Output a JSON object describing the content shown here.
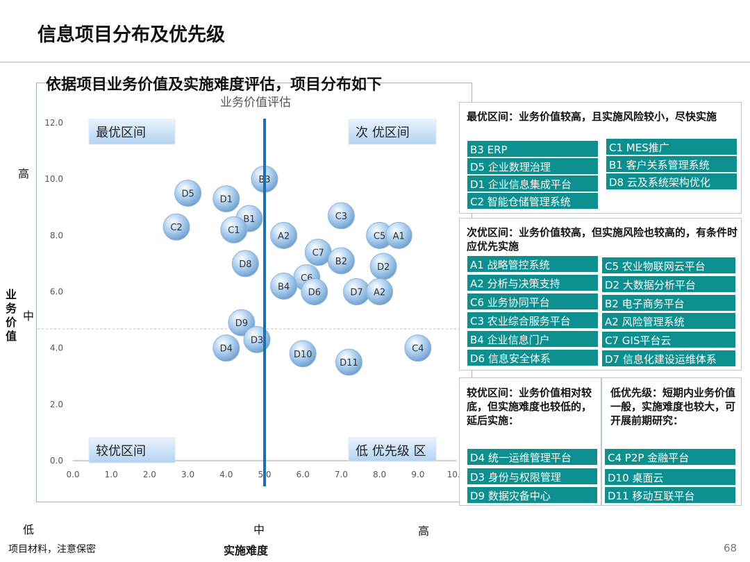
{
  "header": {
    "title": "信息项目分布及优先级",
    "subtitle": "依据项目业务价值及实施难度评估，项目分布如下"
  },
  "chart_data": {
    "type": "scatter",
    "title": "业务价值评估",
    "xlabel": "实施难度",
    "ylabel": "业务价值",
    "xlim": [
      0,
      10
    ],
    "ylim": [
      0,
      12
    ],
    "x_ticks": [
      "0.0",
      "1.0",
      "2.0",
      "3.0",
      "4.0",
      "5.0",
      "6.0",
      "7.0",
      "8.0",
      "9.0",
      "10.0"
    ],
    "y_ticks": [
      "0.0",
      "2.0",
      "4.0",
      "6.0",
      "8.0",
      "10.0",
      "12.0"
    ],
    "divider_x": 5.0,
    "axis_words": {
      "y_high": "高",
      "y_mid": "中",
      "x_low": "低",
      "x_mid": "中",
      "x_high": "高"
    },
    "quadrant_labels": {
      "top_left": "最优区间",
      "top_right": "次 优区间",
      "bottom_left": "较优区间",
      "bottom_right": "低 优先级 区"
    },
    "points": [
      {
        "label": "B3",
        "x": 5.0,
        "y": 10.0
      },
      {
        "label": "D5",
        "x": 3.0,
        "y": 9.5
      },
      {
        "label": "D1",
        "x": 4.0,
        "y": 9.3
      },
      {
        "label": "B1",
        "x": 4.6,
        "y": 8.6
      },
      {
        "label": "C2",
        "x": 2.7,
        "y": 8.3
      },
      {
        "label": "C1",
        "x": 4.2,
        "y": 8.2
      },
      {
        "label": "A2",
        "x": 5.5,
        "y": 8.0
      },
      {
        "label": "C3",
        "x": 7.0,
        "y": 8.7
      },
      {
        "label": "C5",
        "x": 8.0,
        "y": 8.0
      },
      {
        "label": "A1",
        "x": 8.5,
        "y": 8.0
      },
      {
        "label": "C7",
        "x": 6.4,
        "y": 7.4
      },
      {
        "label": "B2",
        "x": 7.0,
        "y": 7.1
      },
      {
        "label": "D8",
        "x": 4.5,
        "y": 7.0
      },
      {
        "label": "D2",
        "x": 8.1,
        "y": 6.9
      },
      {
        "label": "C6",
        "x": 6.1,
        "y": 6.5
      },
      {
        "label": "B4",
        "x": 5.5,
        "y": 6.2
      },
      {
        "label": "D6",
        "x": 6.3,
        "y": 6.0
      },
      {
        "label": "D7",
        "x": 7.4,
        "y": 6.0
      },
      {
        "label": "A2",
        "x": 8.0,
        "y": 6.0
      },
      {
        "label": "D9",
        "x": 4.4,
        "y": 4.9
      },
      {
        "label": "D3",
        "x": 4.8,
        "y": 4.3
      },
      {
        "label": "D4",
        "x": 4.0,
        "y": 4.0
      },
      {
        "label": "C4",
        "x": 9.0,
        "y": 4.0
      },
      {
        "label": "D10",
        "x": 6.0,
        "y": 3.8
      },
      {
        "label": "D11",
        "x": 7.2,
        "y": 3.5
      }
    ],
    "point_color": "#a9cdee"
  },
  "panels": {
    "best": {
      "heading": "最优区间：业务价值较高，且实施风险较小，尽快实施",
      "left": [
        "B3  ERP",
        "D5 企业数理治理",
        "D1 企业信息集成平台",
        "C2  智能仓储管理系统"
      ],
      "right": [
        "C1 MES推广",
        "B1 客户关系管理系统",
        "D8 云及系统架构优化"
      ]
    },
    "second": {
      "heading": "次优区间：业务价值较高，但实施风险也较高的，有条件时应优先实施",
      "left": [
        "A1  战略管控系统",
        "A2 分析与决策支持",
        "C6  业务协同平台",
        "C3 农业综合服务平台",
        "B4  企业信息门户",
        "D6 信息安全体系"
      ],
      "right": [
        "C5  农业物联网云平台",
        "D2 大数据分析平台",
        "B2 电子商务平台",
        "A2 风险管理系统",
        "C7  GIS平台云",
        "D7 信息化建设运维体系"
      ]
    },
    "good": {
      "heading": "较优区间：业务价值相对较底，但实施难度也较低的，延后实施：",
      "items": [
        "D4 统一运维管理平台",
        "D3 身份与权限管理",
        "D9 数据灾备中心"
      ]
    },
    "low": {
      "heading": "低优先级：短期内业务价值一般，实施难度也较大，可开展前期研究：",
      "items": [
        "C4 P2P 金融平台",
        "D10  桌面云",
        "D11  移动互联平台"
      ]
    },
    "tag_color": "#0e8f8f"
  },
  "footer": {
    "left_note": "项目材料，注意保密",
    "page_number": "68"
  }
}
